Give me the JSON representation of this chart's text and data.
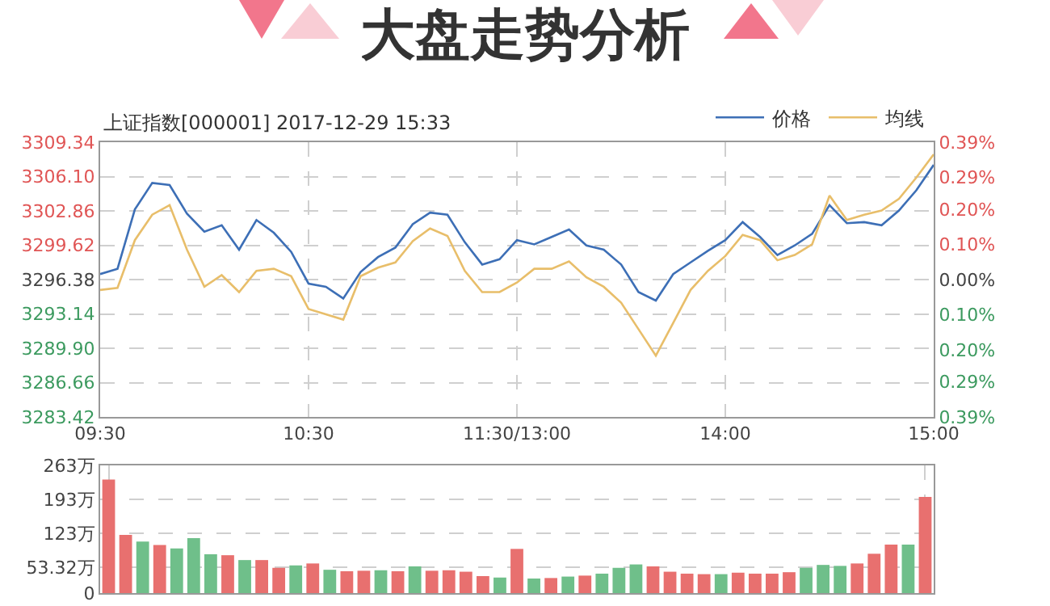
{
  "chart_data": [
    {
      "type": "line",
      "title": "大盘走势分析",
      "subtitle": "上证指数[000001] 2017-12-29 15:33",
      "legend": "top right",
      "grid": true,
      "categories": [
        "09:30",
        null,
        null,
        null,
        null,
        null,
        null,
        null,
        null,
        null,
        null,
        null,
        "10:30",
        null,
        null,
        null,
        null,
        null,
        null,
        null,
        null,
        null,
        null,
        null,
        "11:30/13:00",
        null,
        null,
        null,
        null,
        null,
        null,
        null,
        null,
        null,
        null,
        null,
        "14:00",
        null,
        null,
        null,
        null,
        null,
        null,
        null,
        null,
        null,
        null,
        null,
        "15:00"
      ],
      "ylim": [
        3283.42,
        3309.34
      ],
      "yticks": [
        3283.42,
        3286.66,
        {
          "value": 3289.9,
          "label": "3289.90"
        },
        3293.14,
        3296.38,
        3299.62,
        3302.86,
        {
          "value": 3306.1,
          "label": "3306.10"
        },
        3309.34
      ],
      "y2lim": [
        -0.39,
        0.39
      ],
      "y2ticks": [
        {
          "value": -0.39,
          "label": "0.39%"
        },
        {
          "value": -0.29,
          "label": "0.29%"
        },
        {
          "value": -0.2,
          "label": "0.20%"
        },
        {
          "value": -0.1,
          "label": "0.10%"
        },
        {
          "value": 0,
          "label": "0.00%"
        },
        {
          "value": 0.1,
          "label": "0.10%"
        },
        {
          "value": 0.2,
          "label": "0.20%"
        },
        {
          "value": 0.29,
          "label": "0.29%"
        },
        {
          "value": 0.39,
          "label": "0.39%"
        }
      ],
      "series": [
        {
          "name": "价格",
          "color": "#3d6fb6",
          "values": [
            3296.9,
            3297.4,
            3303.0,
            3305.5,
            3305.3,
            3302.6,
            3300.9,
            3301.5,
            3299.2,
            3302.0,
            3300.8,
            3299.0,
            3296.0,
            3295.7,
            3294.6,
            3297.1,
            3298.5,
            3299.4,
            3301.6,
            3302.7,
            3302.5,
            3299.9,
            3297.8,
            3298.3,
            3300.1,
            3299.7,
            3300.4,
            3301.1,
            3299.6,
            3299.2,
            3297.8,
            3295.2,
            3294.4,
            3296.9,
            3298.0,
            3299.1,
            3300.1,
            3301.8,
            3300.4,
            3298.7,
            3299.6,
            3300.7,
            3303.4,
            3301.7,
            3301.8,
            3301.5,
            3302.9,
            3304.8,
            3307.2
          ]
        },
        {
          "name": "均线",
          "color": "#e8be6a",
          "values": [
            3295.4,
            3295.6,
            3300.1,
            3302.5,
            3303.4,
            3299.2,
            3295.7,
            3296.8,
            3295.2,
            3297.2,
            3297.4,
            3296.7,
            3293.6,
            3293.1,
            3292.6,
            3296.7,
            3297.5,
            3298.0,
            3300.0,
            3301.2,
            3300.5,
            3297.2,
            3295.2,
            3295.2,
            3296.1,
            3297.4,
            3297.4,
            3298.1,
            3296.6,
            3295.7,
            3294.2,
            3291.7,
            3289.2,
            3292.3,
            3295.4,
            3297.2,
            3298.6,
            3300.6,
            3300.1,
            3298.2,
            3298.7,
            3299.7,
            3304.3,
            3302.0,
            3302.5,
            3302.9,
            3304.0,
            3306.0,
            3308.2
          ]
        }
      ]
    },
    {
      "type": "bar",
      "grid": true,
      "tick_labels": "y",
      "categories": [
        null,
        null,
        null,
        null,
        null,
        null,
        null,
        null,
        null,
        null,
        null,
        null,
        null,
        null,
        null,
        null,
        null,
        null,
        null,
        null,
        null,
        null,
        null,
        null,
        null,
        null,
        null,
        null,
        null,
        null,
        null,
        null,
        null,
        null,
        null,
        null,
        null,
        null,
        null,
        null,
        null,
        null,
        null,
        null,
        null,
        null,
        null,
        null,
        null
      ],
      "ylim": [
        0,
        263
      ],
      "yticks": [
        0,
        {
          "value": 53.32,
          "label": "53.32万"
        },
        {
          "value": 123,
          "label": "123万"
        },
        {
          "value": 193,
          "label": "193万"
        },
        {
          "value": 263,
          "label": "263万"
        }
      ],
      "values": [
        234,
        120,
        106,
        99,
        92,
        113,
        80,
        78,
        68,
        68,
        52,
        57,
        61,
        48,
        45,
        46,
        47,
        45,
        55,
        46,
        47,
        44,
        35,
        32,
        91,
        30,
        31,
        34,
        36,
        40,
        52,
        59,
        55,
        44,
        40,
        39,
        39,
        42,
        40,
        40,
        43,
        52,
        58,
        56,
        61,
        81,
        100,
        100,
        198
      ],
      "colors": [
        "#e8706f",
        "#e8706f",
        "#6fbf8a",
        "#e8706f",
        "#6fbf8a",
        "#6fbf8a",
        "#6fbf8a",
        "#e8706f",
        "#6fbf8a",
        "#e8706f",
        "#e8706f",
        "#6fbf8a",
        "#e8706f",
        "#6fbf8a",
        "#e8706f",
        "#e8706f",
        "#6fbf8a",
        "#e8706f",
        "#6fbf8a",
        "#e8706f",
        "#e8706f",
        "#e8706f",
        "#e8706f",
        "#6fbf8a",
        "#e8706f",
        "#6fbf8a",
        "#e8706f",
        "#6fbf8a",
        "#e8706f",
        "#6fbf8a",
        "#6fbf8a",
        "#6fbf8a",
        "#e8706f",
        "#e8706f",
        "#e8706f",
        "#e8706f",
        "#6fbf8a",
        "#e8706f",
        "#e8706f",
        "#e8706f",
        "#e8706f",
        "#6fbf8a",
        "#6fbf8a",
        "#6fbf8a",
        "#e8706f",
        "#e8706f",
        "#e8706f",
        "#6fbf8a",
        "#e8706f"
      ]
    }
  ]
}
